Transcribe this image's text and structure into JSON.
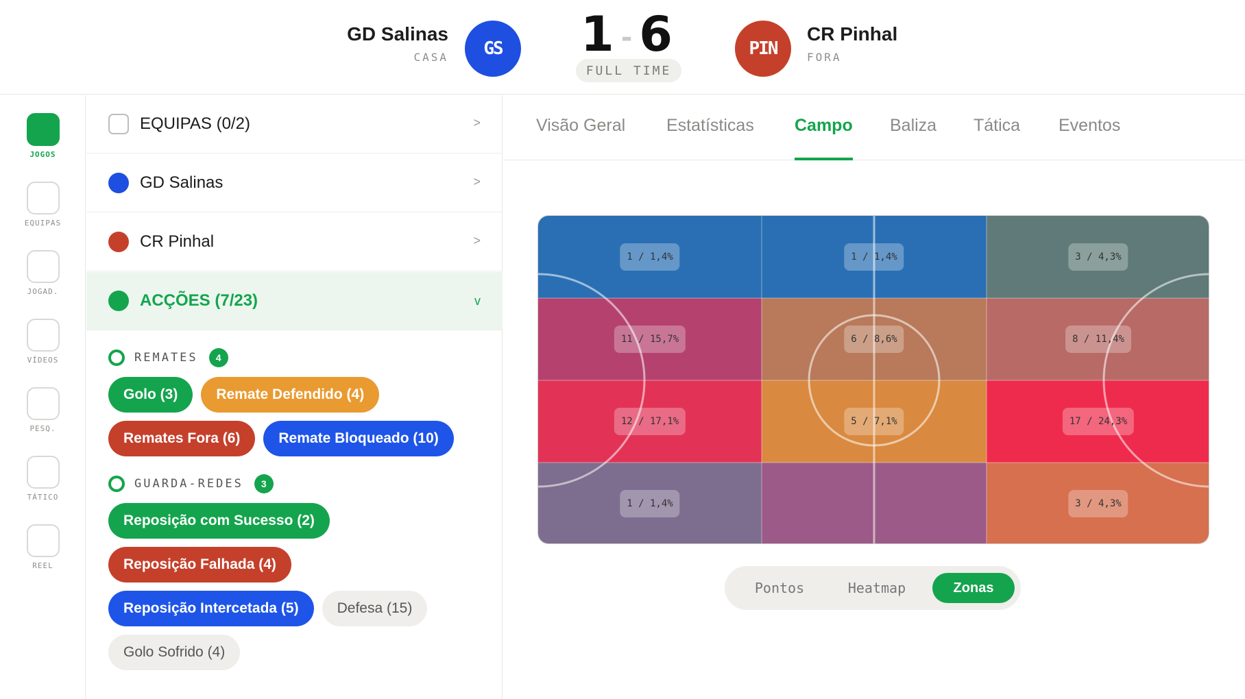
{
  "match": {
    "home": {
      "name": "GD Salinas",
      "side": "CASA",
      "abbr": "GS",
      "color": "#1e4fe0"
    },
    "away": {
      "name": "CR Pinhal",
      "side": "FORA",
      "abbr": "PIN",
      "color": "#c5402b"
    },
    "home_score": "1",
    "score_sep": "-",
    "away_score": "6",
    "status": "FULL TIME"
  },
  "rail": {
    "items": [
      {
        "label": "JOGOS",
        "active": true
      },
      {
        "label": "EQUIPAS",
        "active": false
      },
      {
        "label": "JOGAD.",
        "active": false
      },
      {
        "label": "VÍDEOS",
        "active": false
      },
      {
        "label": "PESQ.",
        "active": false
      },
      {
        "label": "TÁTICO",
        "active": false
      },
      {
        "label": "REEL",
        "active": false
      }
    ]
  },
  "filters": {
    "teams_row": {
      "label": "EQUIPAS (0/2)",
      "chevron": ">"
    },
    "home_row": {
      "label": "GD Salinas",
      "chevron": ">"
    },
    "away_row": {
      "label": "CR Pinhal",
      "chevron": ">"
    },
    "actions_row": {
      "label": "ACÇÕES (7/23)",
      "chevron": "v"
    },
    "sections": [
      {
        "title": "REMATES",
        "count": "4",
        "chips": [
          {
            "label": "Golo (3)",
            "tone": "green"
          },
          {
            "label": "Remate Defendido (4)",
            "tone": "orange"
          },
          {
            "label": "Remates Fora (6)",
            "tone": "red"
          },
          {
            "label": "Remate Bloqueado (10)",
            "tone": "blue"
          }
        ]
      },
      {
        "title": "GUARDA-REDES",
        "count": "3",
        "chips": [
          {
            "label": "Reposição com Sucesso (2)",
            "tone": "green"
          },
          {
            "label": "Reposição Falhada (4)",
            "tone": "red"
          },
          {
            "label": "Reposição Intercetada (5)",
            "tone": "blue"
          },
          {
            "label": "Defesa (15)",
            "tone": "neutral"
          },
          {
            "label": "Golo Sofrido (4)",
            "tone": "neutral"
          }
        ]
      }
    ]
  },
  "tabs": [
    {
      "label": "Visão Geral",
      "active": false
    },
    {
      "label": "Estatísticas",
      "active": false
    },
    {
      "label": "Campo",
      "active": true
    },
    {
      "label": "Baliza",
      "active": false
    },
    {
      "label": "Tática",
      "active": false
    },
    {
      "label": "Eventos",
      "active": false
    }
  ],
  "pitch_zones": [
    {
      "row": 0,
      "col": 0,
      "label": "1 / 1,4%",
      "color": "#2a6fb3"
    },
    {
      "row": 0,
      "col": 1,
      "label": "1 / 1,4%",
      "color": "#2a6fb3"
    },
    {
      "row": 0,
      "col": 2,
      "label": "3 / 4,3%",
      "color": "#5f7a78"
    },
    {
      "row": 1,
      "col": 0,
      "label": "11 / 15,7%",
      "color": "#b5426e"
    },
    {
      "row": 1,
      "col": 1,
      "label": "6 / 8,6%",
      "color": "#b87a5a"
    },
    {
      "row": 1,
      "col": 2,
      "label": "8 / 11,4%",
      "color": "#b86a66"
    },
    {
      "row": 2,
      "col": 0,
      "label": "12 / 17,1%",
      "color": "#e23357"
    },
    {
      "row": 2,
      "col": 1,
      "label": "5 / 7,1%",
      "color": "#d98a40"
    },
    {
      "row": 2,
      "col": 2,
      "label": "17 / 24,3%",
      "color": "#ef2b4d"
    },
    {
      "row": 3,
      "col": 0,
      "label": "1 / 1,4%",
      "color": "#7d6e8f"
    },
    {
      "row": 3,
      "col": 1,
      "label": "",
      "color": "#9c5a88"
    },
    {
      "row": 3,
      "col": 2,
      "label": "3 / 4,3%",
      "color": "#d7704f"
    }
  ],
  "view_toggle": [
    {
      "label": "Pontos",
      "active": false
    },
    {
      "label": "Heatmap",
      "active": false
    },
    {
      "label": "Zonas",
      "active": true
    }
  ]
}
